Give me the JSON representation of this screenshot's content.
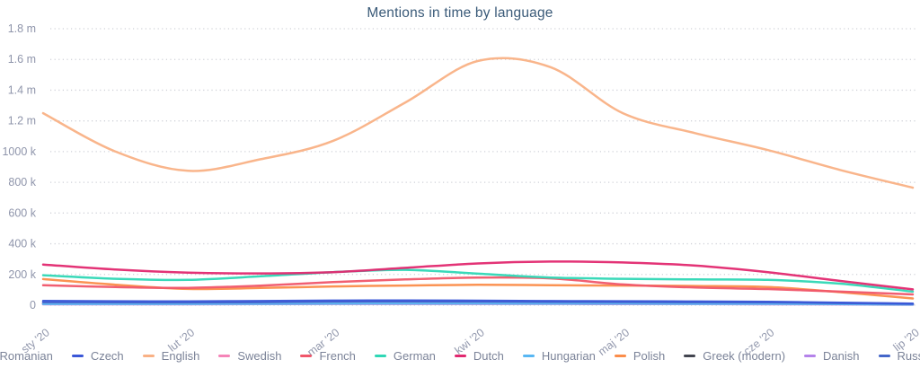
{
  "chart_data": {
    "type": "line",
    "title": "Mentions in time by language",
    "categories": [
      "sty '20",
      "lut '20",
      "mar '20",
      "kwi '20",
      "maj '20",
      "cze '20",
      "lip '20"
    ],
    "points_per_interval": 2,
    "y_ticks": [
      {
        "label": "1.8 m",
        "value": 1800
      },
      {
        "label": "1.6 m",
        "value": 1600
      },
      {
        "label": "1.4 m",
        "value": 1400
      },
      {
        "label": "1.2 m",
        "value": 1200
      },
      {
        "label": "1000 k",
        "value": 1000
      },
      {
        "label": "800 k",
        "value": 800
      },
      {
        "label": "600 k",
        "value": 600
      },
      {
        "label": "400 k",
        "value": 400
      },
      {
        "label": "200 k",
        "value": 200
      },
      {
        "label": "0",
        "value": 0
      }
    ],
    "ylim": [
      0,
      1800
    ],
    "value_unit": "mentions (thousands)",
    "grid": "dotted-horizontal",
    "legend_position": "bottom",
    "series": [
      {
        "name": "Romanian",
        "color": "#c77edb",
        "values": [
          6,
          6,
          6,
          7,
          8,
          8,
          8,
          8,
          7,
          7,
          6,
          5,
          3
        ]
      },
      {
        "name": "Czech",
        "color": "#3a57d7",
        "values": [
          28,
          26,
          25,
          27,
          30,
          31,
          29,
          27,
          26,
          24,
          22,
          16,
          10
        ]
      },
      {
        "name": "English",
        "color": "#f9b185",
        "values": [
          1250,
          1000,
          875,
          950,
          1070,
          1320,
          1590,
          1550,
          1250,
          1120,
          1010,
          880,
          765
        ]
      },
      {
        "name": "Swedish",
        "color": "#f584b8",
        "values": [
          12,
          11,
          11,
          13,
          16,
          17,
          16,
          15,
          14,
          13,
          12,
          9,
          5
        ]
      },
      {
        "name": "French",
        "color": "#f0566a",
        "values": [
          130,
          118,
          113,
          127,
          150,
          168,
          180,
          175,
          135,
          115,
          105,
          88,
          70
        ]
      },
      {
        "name": "German",
        "color": "#2fd7b5",
        "values": [
          195,
          172,
          165,
          188,
          215,
          230,
          205,
          180,
          172,
          168,
          165,
          140,
          88
        ]
      },
      {
        "name": "Dutch",
        "color": "#e1286f",
        "values": [
          265,
          232,
          212,
          207,
          215,
          243,
          272,
          284,
          278,
          258,
          215,
          158,
          103
        ]
      },
      {
        "name": "Hungarian",
        "color": "#58b7f3",
        "values": [
          8,
          8,
          8,
          9,
          10,
          11,
          11,
          10,
          10,
          9,
          9,
          7,
          4
        ]
      },
      {
        "name": "Polish",
        "color": "#fb8d4a",
        "values": [
          170,
          133,
          106,
          112,
          122,
          128,
          133,
          130,
          128,
          125,
          118,
          85,
          44
        ]
      },
      {
        "name": "Greek (modern)",
        "color": "#43454f",
        "values": [
          10,
          10,
          10,
          12,
          14,
          15,
          15,
          16,
          15,
          14,
          13,
          9,
          5
        ]
      },
      {
        "name": "Danish",
        "color": "#b583ea",
        "values": [
          14,
          13,
          13,
          15,
          20,
          22,
          20,
          18,
          16,
          15,
          14,
          10,
          6
        ]
      },
      {
        "name": "Russian",
        "color": "#4466c9",
        "values": [
          20,
          19,
          18,
          20,
          24,
          25,
          24,
          22,
          21,
          20,
          19,
          14,
          9
        ]
      }
    ],
    "draw_order": [
      "English",
      "Romanian",
      "Danish",
      "Greek (modern)",
      "Swedish",
      "Hungarian",
      "Russian",
      "Czech",
      "Polish",
      "French",
      "German",
      "Dutch"
    ]
  },
  "style": {
    "grid_color": "#cfd1d8",
    "title_color": "#3a5a78",
    "tick_color": "#8f95ab",
    "legend_text_color": "#7b8398"
  }
}
